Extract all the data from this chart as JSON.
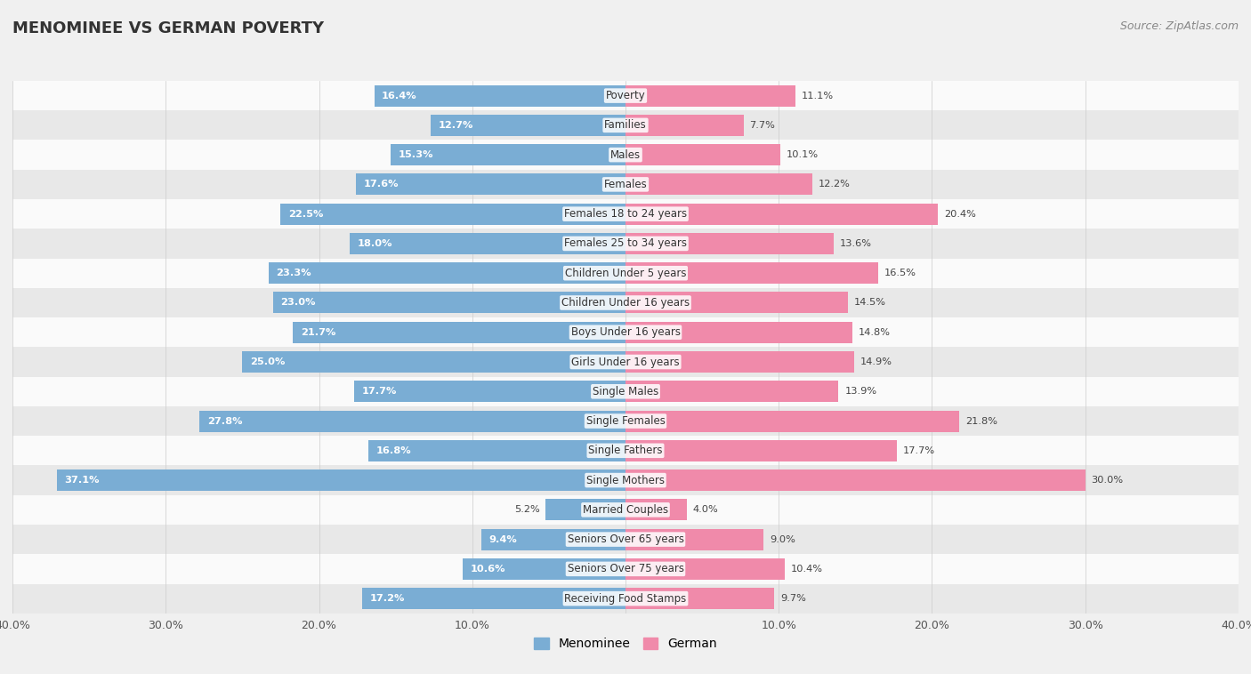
{
  "title": "MENOMINEE VS GERMAN POVERTY",
  "source": "Source: ZipAtlas.com",
  "categories": [
    "Poverty",
    "Families",
    "Males",
    "Females",
    "Females 18 to 24 years",
    "Females 25 to 34 years",
    "Children Under 5 years",
    "Children Under 16 years",
    "Boys Under 16 years",
    "Girls Under 16 years",
    "Single Males",
    "Single Females",
    "Single Fathers",
    "Single Mothers",
    "Married Couples",
    "Seniors Over 65 years",
    "Seniors Over 75 years",
    "Receiving Food Stamps"
  ],
  "menominee": [
    16.4,
    12.7,
    15.3,
    17.6,
    22.5,
    18.0,
    23.3,
    23.0,
    21.7,
    25.0,
    17.7,
    27.8,
    16.8,
    37.1,
    5.2,
    9.4,
    10.6,
    17.2
  ],
  "german": [
    11.1,
    7.7,
    10.1,
    12.2,
    20.4,
    13.6,
    16.5,
    14.5,
    14.8,
    14.9,
    13.9,
    21.8,
    17.7,
    30.0,
    4.0,
    9.0,
    10.4,
    9.7
  ],
  "menominee_color": "#7aadd4",
  "german_color": "#f08aaa",
  "background_color": "#f0f0f0",
  "row_color_light": "#fafafa",
  "row_color_dark": "#e8e8e8",
  "axis_limit": 40.0,
  "bar_height": 0.72,
  "legend_label_menominee": "Menominee",
  "legend_label_german": "German"
}
